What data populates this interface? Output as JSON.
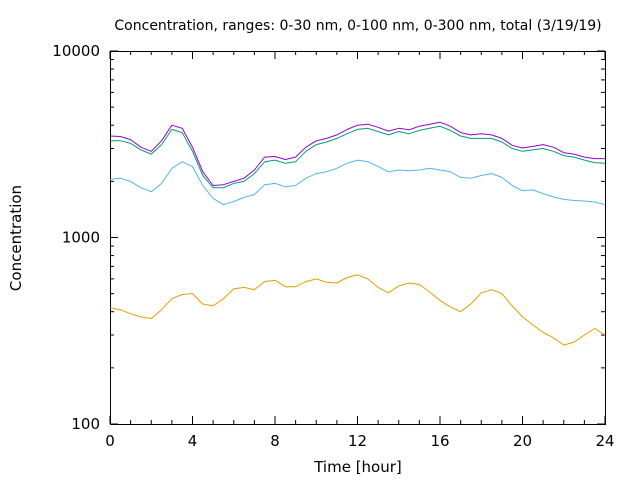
{
  "chart_data": {
    "type": "line",
    "title": "Concentration, ranges: 0-30 nm, 0-100 nm, 0-300 nm, total (3/19/19)",
    "xlabel": "Time [hour]",
    "ylabel": "Concentration",
    "xlim": [
      0,
      24
    ],
    "ylim": [
      100,
      10000
    ],
    "yscale": "log",
    "xticks": [
      "0",
      "4",
      "8",
      "12",
      "16",
      "20",
      "24"
    ],
    "xtick_values": [
      0,
      4,
      8,
      12,
      16,
      20,
      24
    ],
    "yticks": [
      "100",
      "1000",
      "10000"
    ],
    "ytick_values": [
      100,
      1000,
      10000
    ],
    "grid": false,
    "legend": "none",
    "series": [
      {
        "color": "#e69f00",
        "x": [
          0,
          0.5,
          1,
          1.5,
          2,
          2.5,
          3,
          3.5,
          4,
          4.5,
          5,
          5.5,
          6,
          6.5,
          7,
          7.5,
          8,
          8.5,
          9,
          9.5,
          10,
          10.5,
          11,
          11.5,
          12,
          12.5,
          13,
          13.5,
          14,
          14.5,
          15,
          15.5,
          16,
          16.5,
          17,
          17.5,
          18,
          18.5,
          19,
          19.5,
          20,
          20.5,
          21,
          21.5,
          22,
          22.5,
          23,
          23.5,
          24
        ],
        "y": [
          420,
          410,
          390,
          375,
          368,
          410,
          470,
          495,
          500,
          440,
          430,
          470,
          530,
          540,
          525,
          580,
          590,
          545,
          545,
          580,
          600,
          575,
          570,
          610,
          630,
          600,
          540,
          505,
          550,
          570,
          560,
          510,
          460,
          425,
          400,
          440,
          505,
          525,
          500,
          430,
          375,
          340,
          310,
          290,
          265,
          275,
          300,
          325,
          300
        ]
      },
      {
        "color": "#56b4e9",
        "x": [
          0,
          0.5,
          1,
          1.5,
          2,
          2.5,
          3,
          3.5,
          4,
          4.5,
          5,
          5.5,
          6,
          6.5,
          7,
          7.5,
          8,
          8.5,
          9,
          9.5,
          10,
          10.5,
          11,
          11.5,
          12,
          12.5,
          13,
          13.5,
          14,
          14.5,
          15,
          15.5,
          16,
          16.5,
          17,
          17.5,
          18,
          18.5,
          19,
          19.5,
          20,
          20.5,
          21,
          21.5,
          22,
          22.5,
          23,
          23.5,
          24
        ],
        "y": [
          2050,
          2080,
          2000,
          1850,
          1760,
          1950,
          2350,
          2550,
          2400,
          1900,
          1620,
          1500,
          1560,
          1640,
          1700,
          1920,
          1950,
          1870,
          1900,
          2080,
          2200,
          2250,
          2350,
          2500,
          2600,
          2550,
          2400,
          2250,
          2300,
          2280,
          2300,
          2350,
          2300,
          2250,
          2100,
          2080,
          2150,
          2200,
          2100,
          1900,
          1780,
          1800,
          1720,
          1650,
          1600,
          1580,
          1570,
          1550,
          1500
        ]
      },
      {
        "color": "#009e73",
        "x": [
          0,
          0.5,
          1,
          1.5,
          2,
          2.5,
          3,
          3.5,
          4,
          4.5,
          5,
          5.5,
          6,
          6.5,
          7,
          7.5,
          8,
          8.5,
          9,
          9.5,
          10,
          10.5,
          11,
          11.5,
          12,
          12.5,
          13,
          13.5,
          14,
          14.5,
          15,
          15.5,
          16,
          16.5,
          17,
          17.5,
          18,
          18.5,
          19,
          19.5,
          20,
          20.5,
          21,
          21.5,
          22,
          22.5,
          23,
          23.5,
          24
        ],
        "y": [
          3300,
          3300,
          3200,
          2950,
          2800,
          3150,
          3800,
          3650,
          2900,
          2150,
          1850,
          1850,
          1950,
          2000,
          2200,
          2550,
          2600,
          2500,
          2550,
          2900,
          3150,
          3250,
          3400,
          3600,
          3800,
          3850,
          3700,
          3550,
          3700,
          3600,
          3750,
          3850,
          3950,
          3750,
          3500,
          3400,
          3400,
          3400,
          3250,
          3000,
          2900,
          2950,
          3000,
          2900,
          2750,
          2700,
          2600,
          2520,
          2500
        ]
      },
      {
        "color": "#9400d3",
        "x": [
          0,
          0.5,
          1,
          1.5,
          2,
          2.5,
          3,
          3.5,
          4,
          4.5,
          5,
          5.5,
          6,
          6.5,
          7,
          7.5,
          8,
          8.5,
          9,
          9.5,
          10,
          10.5,
          11,
          11.5,
          12,
          12.5,
          13,
          13.5,
          14,
          14.5,
          15,
          15.5,
          16,
          16.5,
          17,
          17.5,
          18,
          18.5,
          19,
          19.5,
          20,
          20.5,
          21,
          21.5,
          22,
          22.5,
          23,
          23.5,
          24
        ],
        "y": [
          3500,
          3480,
          3350,
          3050,
          2900,
          3300,
          4000,
          3850,
          3050,
          2250,
          1900,
          1920,
          2000,
          2080,
          2300,
          2700,
          2720,
          2620,
          2700,
          3050,
          3300,
          3400,
          3550,
          3800,
          4000,
          4050,
          3900,
          3720,
          3850,
          3780,
          3950,
          4050,
          4150,
          3950,
          3650,
          3550,
          3600,
          3550,
          3400,
          3120,
          3020,
          3080,
          3150,
          3050,
          2850,
          2800,
          2700,
          2650,
          2650
        ]
      }
    ]
  }
}
